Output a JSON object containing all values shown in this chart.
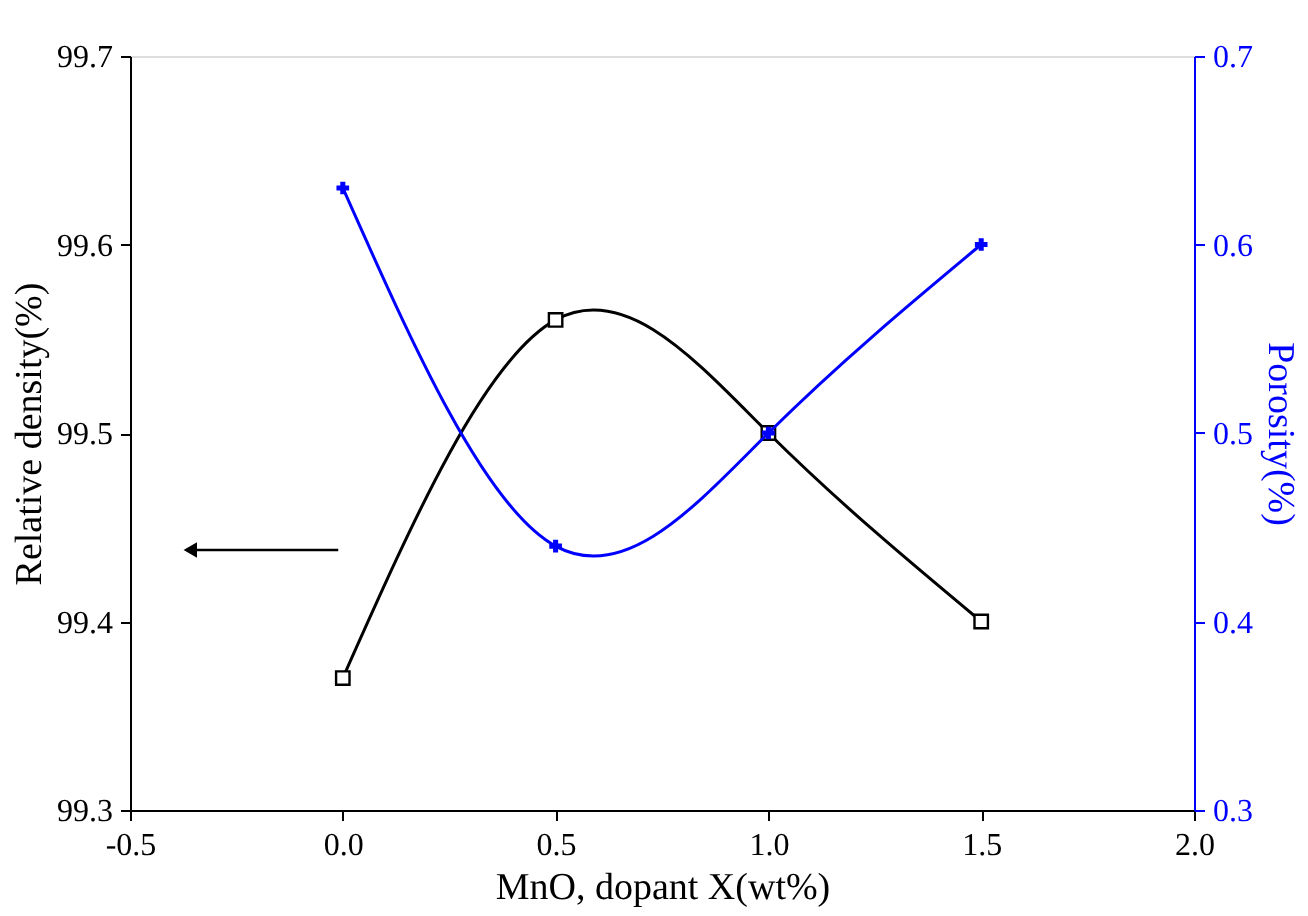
{
  "chart_data": {
    "type": "line",
    "xlabel": "MnO, dopant X(wt%)",
    "ylabel": "Relative density(%)",
    "y2label": "Porosity(%)",
    "x": [
      0,
      0.5,
      1,
      1.5
    ],
    "xlim": [
      -0.5,
      2.0
    ],
    "xticks": [
      {
        "value": -0.5,
        "label": "-0.5"
      },
      {
        "value": 0,
        "label": "0.0"
      },
      {
        "value": 0.5,
        "label": "0.5"
      },
      {
        "value": 1,
        "label": "1.0"
      },
      {
        "value": 1.5,
        "label": "1.5"
      },
      {
        "value": 2,
        "label": "2.0"
      }
    ],
    "ylim": [
      99.3,
      99.7
    ],
    "yticks": [
      99.3,
      99.4,
      99.5,
      99.6,
      99.7
    ],
    "y2lim": [
      0.3,
      0.7
    ],
    "y2ticks": [
      0.3,
      0.4,
      0.5,
      0.6,
      0.7
    ],
    "series": [
      {
        "color": "#000000",
        "marker": "square",
        "values": [
          99.37,
          99.56,
          99.5,
          99.4
        ]
      },
      {
        "color": "#0000ff",
        "marker": "cross",
        "axis": "y2",
        "values": [
          0.63,
          0.44,
          0.5,
          0.6
        ]
      }
    ]
  }
}
